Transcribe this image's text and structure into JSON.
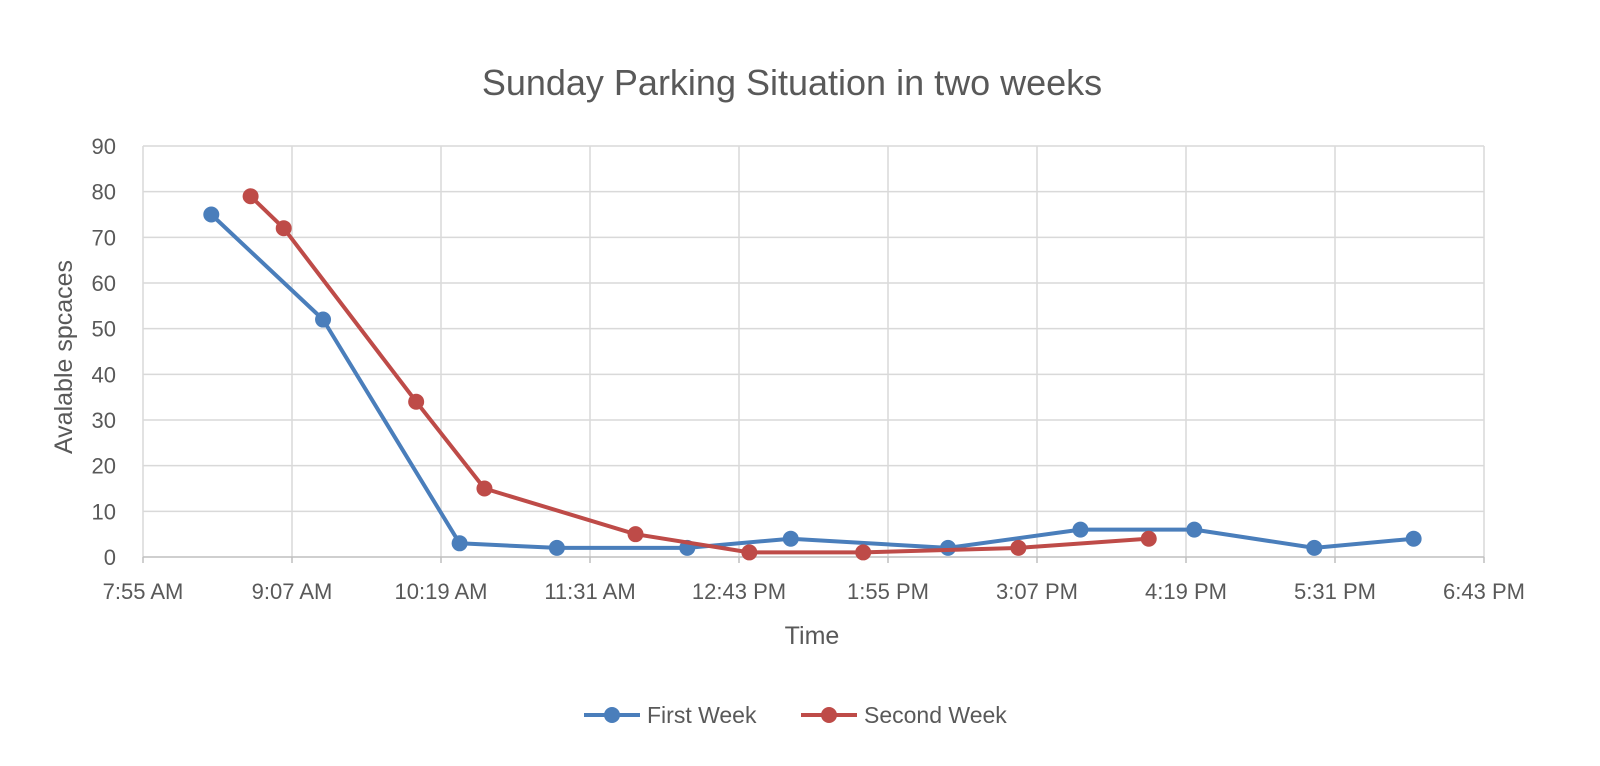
{
  "chart_data": {
    "type": "line",
    "title": "Sunday Parking Situation in two weeks",
    "xlabel": "Time",
    "ylabel": "Avalable spcaces",
    "x_tick_labels": [
      "7:55 AM",
      "9:07 AM",
      "10:19 AM",
      "11:31 AM",
      "12:43 PM",
      "1:55 PM",
      "3:07 PM",
      "4:19 PM",
      "5:31 PM",
      "6:43 PM"
    ],
    "y_tick_labels": [
      "0",
      "10",
      "20",
      "30",
      "40",
      "50",
      "60",
      "70",
      "80",
      "90"
    ],
    "xlim": [
      "7:55 AM",
      "6:43 PM"
    ],
    "ylim": [
      0,
      90
    ],
    "grid": true,
    "legend_position": "bottom",
    "series": [
      {
        "name": "First Week",
        "color": "#4a7ebb",
        "x": [
          "8:28 AM",
          "9:22 AM",
          "10:28 AM",
          "11:15 AM",
          "12:18 PM",
          "1:08 PM",
          "2:24 PM",
          "3:28 PM",
          "4:23 PM",
          "5:21 PM",
          "6:09 PM"
        ],
        "y": [
          75,
          52,
          3,
          2,
          2,
          4,
          2,
          6,
          6,
          2,
          4
        ]
      },
      {
        "name": "Second Week",
        "color": "#be4b48",
        "x": [
          "8:47 AM",
          "9:03 AM",
          "10:07 AM",
          "10:40 AM",
          "11:53 AM",
          "12:48 PM",
          "1:43 PM",
          "2:58 PM",
          "4:01 PM"
        ],
        "y": [
          79,
          72,
          34,
          15,
          5,
          1,
          1,
          2,
          4
        ]
      }
    ]
  }
}
